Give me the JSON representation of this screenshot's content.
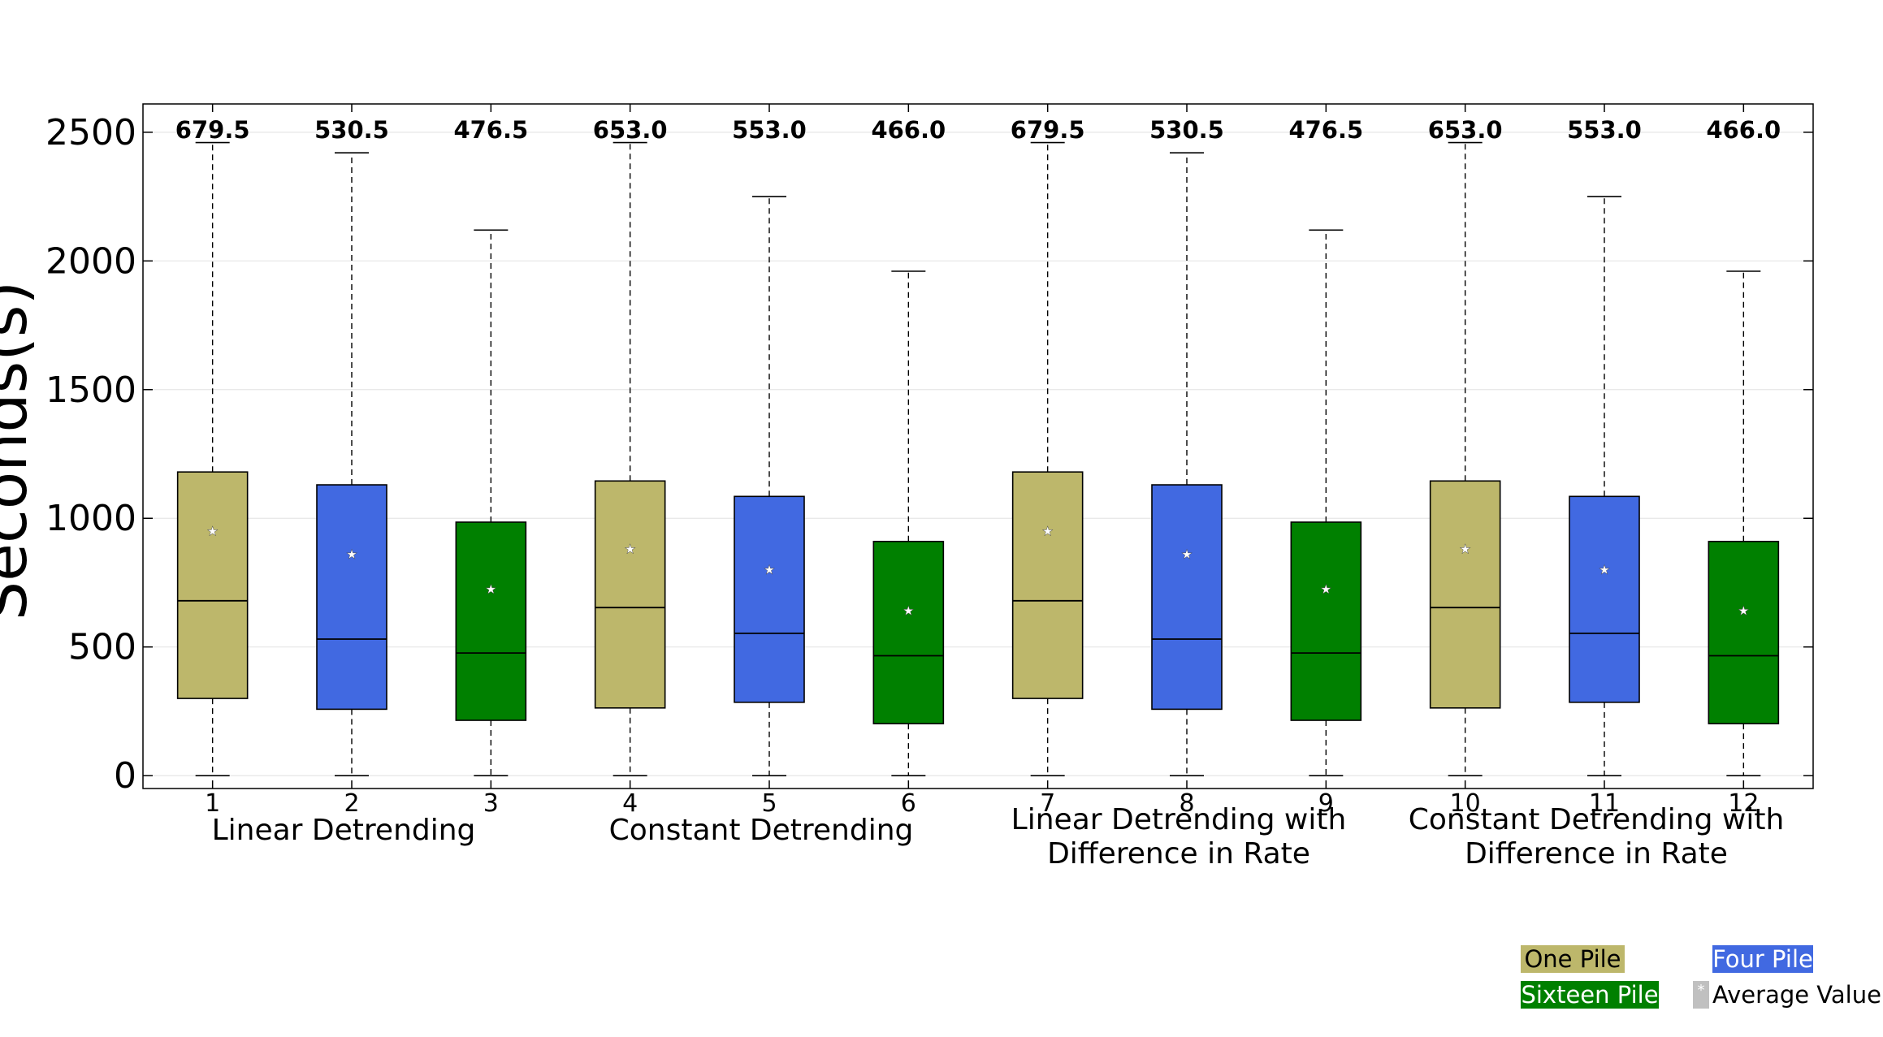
{
  "chart_data": {
    "type": "box",
    "ylabel": "Seconds(s)",
    "ylim": [
      -50,
      2610
    ],
    "yticks": [
      0,
      500,
      1000,
      1500,
      2000,
      2500
    ],
    "grid": "horizontal",
    "categories": [
      "1",
      "2",
      "3",
      "4",
      "5",
      "6",
      "7",
      "8",
      "9",
      "10",
      "11",
      "12"
    ],
    "groups": [
      {
        "label_lines": [
          "Linear Detrending"
        ],
        "positions": [
          1,
          2,
          3
        ]
      },
      {
        "label_lines": [
          "Constant Detrending"
        ],
        "positions": [
          4,
          5,
          6
        ]
      },
      {
        "label_lines": [
          "Linear Detrending with",
          "Difference in Rate"
        ],
        "positions": [
          7,
          8,
          9
        ]
      },
      {
        "label_lines": [
          "Constant Detrending with",
          "Difference in Rate"
        ],
        "positions": [
          10,
          11,
          12
        ]
      }
    ],
    "series": [
      {
        "name": "One Pile",
        "color": "#bdb76b",
        "positions": [
          1,
          4,
          7,
          10
        ]
      },
      {
        "name": "Four Pile",
        "color": "#4169e1",
        "positions": [
          2,
          5,
          8,
          11
        ]
      },
      {
        "name": "Sixteen Pile",
        "color": "#008000",
        "positions": [
          3,
          6,
          9,
          12
        ]
      }
    ],
    "boxes": [
      {
        "pos": 1,
        "series": "One Pile",
        "whislo": 0,
        "q1": 300,
        "median": 679.5,
        "q3": 1180,
        "whishi": 2460,
        "mean": 955,
        "median_label": "679.5"
      },
      {
        "pos": 2,
        "series": "Four Pile",
        "whislo": 0,
        "q1": 258,
        "median": 530.5,
        "q3": 1130,
        "whishi": 2420,
        "mean": 865,
        "median_label": "530.5"
      },
      {
        "pos": 3,
        "series": "Sixteen Pile",
        "whislo": 0,
        "q1": 215,
        "median": 476.5,
        "q3": 985,
        "whishi": 2120,
        "mean": 730,
        "median_label": "476.5"
      },
      {
        "pos": 4,
        "series": "One Pile",
        "whislo": 0,
        "q1": 263,
        "median": 653.0,
        "q3": 1145,
        "whishi": 2460,
        "mean": 885,
        "median_label": "653.0"
      },
      {
        "pos": 5,
        "series": "Four Pile",
        "whislo": 0,
        "q1": 285,
        "median": 553.0,
        "q3": 1085,
        "whishi": 2250,
        "mean": 805,
        "median_label": "553.0"
      },
      {
        "pos": 6,
        "series": "Sixteen Pile",
        "whislo": 0,
        "q1": 202,
        "median": 466.0,
        "q3": 910,
        "whishi": 1960,
        "mean": 645,
        "median_label": "466.0"
      },
      {
        "pos": 7,
        "series": "One Pile",
        "whislo": 0,
        "q1": 300,
        "median": 679.5,
        "q3": 1180,
        "whishi": 2460,
        "mean": 955,
        "median_label": "679.5"
      },
      {
        "pos": 8,
        "series": "Four Pile",
        "whislo": 0,
        "q1": 258,
        "median": 530.5,
        "q3": 1130,
        "whishi": 2420,
        "mean": 865,
        "median_label": "530.5"
      },
      {
        "pos": 9,
        "series": "Sixteen Pile",
        "whislo": 0,
        "q1": 215,
        "median": 476.5,
        "q3": 985,
        "whishi": 2120,
        "mean": 730,
        "median_label": "476.5"
      },
      {
        "pos": 10,
        "series": "One Pile",
        "whislo": 0,
        "q1": 263,
        "median": 653.0,
        "q3": 1145,
        "whishi": 2460,
        "mean": 885,
        "median_label": "653.0"
      },
      {
        "pos": 11,
        "series": "Four Pile",
        "whislo": 0,
        "q1": 285,
        "median": 553.0,
        "q3": 1085,
        "whishi": 2250,
        "mean": 805,
        "median_label": "553.0"
      },
      {
        "pos": 12,
        "series": "Sixteen Pile",
        "whislo": 0,
        "q1": 202,
        "median": 466.0,
        "q3": 910,
        "whishi": 1960,
        "mean": 645,
        "median_label": "466.0"
      }
    ],
    "legend": {
      "placement": "bottom-right",
      "items": [
        {
          "label": "One Pile",
          "color": "#bdb76b",
          "text_color": "#000000"
        },
        {
          "label": "Four Pile",
          "color": "#4169e1",
          "text_color": "#ffffff"
        },
        {
          "label": "Sixteen Pile",
          "color": "#008000",
          "text_color": "#ffffff"
        },
        {
          "label": "Average Value",
          "color": "#c0c0c0",
          "text_color": "#000000",
          "marker": "*"
        }
      ]
    }
  }
}
